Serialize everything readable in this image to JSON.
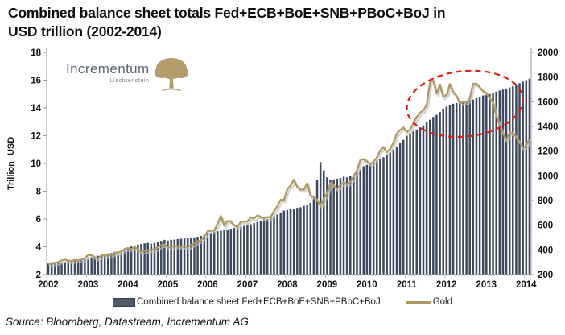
{
  "title_lines": [
    "Combined balance sheet totals Fed+ECB+BoE+SNB+PBoC+BoJ in",
    "USD trillion (2002-2014)"
  ],
  "logo": {
    "name": "Incrementum",
    "subtitle": "Liechtenstein"
  },
  "legend": {
    "bars": "Combined balance sheet Fed+ECB+BoE+SNB+PBoC+BoJ",
    "line": "Gold"
  },
  "source": "Source: Bloomberg, Datastream, Incrementum AG",
  "colors": {
    "bar": "#3c4960",
    "gold": "#b19a66",
    "gold_shadow": "#bdbdbd",
    "annotation": "#dd2015",
    "axis": "#9a9a9a",
    "tick_text": "#111111",
    "logo_text": "#5a6374",
    "logo_tree": "#b49b6b"
  },
  "chart_data": {
    "type": "bar+line",
    "title": "Combined balance sheet totals Fed+ECB+BoE+SNB+PBoC+BoJ in USD trillion (2002-2014)",
    "x_start_year": 2002,
    "points_per_year": 12,
    "x_tick_labels": [
      "2002",
      "2003",
      "2004",
      "2005",
      "2006",
      "2007",
      "2008",
      "2009",
      "2010",
      "2011",
      "2012",
      "2013",
      "2014"
    ],
    "left_axis": {
      "label": "Trillion USD",
      "range": [
        2,
        18
      ],
      "ticks": [
        2,
        4,
        6,
        8,
        10,
        12,
        14,
        16,
        18
      ]
    },
    "right_axis": {
      "label": "",
      "range": [
        200,
        2000
      ],
      "ticks": [
        200,
        400,
        600,
        800,
        1000,
        1200,
        1400,
        1600,
        1800,
        2000
      ]
    },
    "grid": false,
    "legend_position": "bottom",
    "series": [
      {
        "name": "Combined balance sheet Fed+ECB+BoE+SNB+PBoC+BoJ",
        "type": "bar",
        "axis": "left",
        "unit": "trillion USD",
        "values": [
          2.8,
          2.82,
          2.84,
          2.86,
          2.88,
          2.92,
          2.96,
          3.0,
          3.02,
          3.0,
          3.05,
          3.1,
          3.15,
          3.2,
          3.28,
          3.35,
          3.42,
          3.48,
          3.52,
          3.55,
          3.46,
          3.42,
          3.55,
          3.7,
          3.95,
          4.02,
          4.1,
          4.15,
          4.2,
          4.25,
          4.28,
          4.22,
          4.28,
          4.35,
          4.42,
          4.5,
          4.45,
          4.5,
          4.52,
          4.55,
          4.58,
          4.6,
          4.62,
          4.65,
          4.68,
          4.72,
          4.78,
          4.85,
          4.95,
          5.02,
          5.08,
          5.12,
          5.16,
          5.2,
          5.25,
          5.3,
          5.35,
          5.4,
          5.45,
          5.5,
          5.55,
          5.62,
          5.7,
          5.78,
          5.85,
          5.92,
          6.0,
          6.1,
          6.2,
          6.32,
          6.45,
          6.6,
          6.65,
          6.7,
          6.75,
          6.8,
          6.85,
          6.95,
          7.05,
          7.15,
          7.5,
          8.8,
          10.1,
          9.5,
          9.0,
          8.8,
          8.85,
          8.9,
          8.95,
          9.05,
          9.0,
          9.1,
          9.2,
          9.35,
          9.55,
          9.8,
          9.9,
          10.0,
          10.1,
          10.2,
          10.3,
          10.45,
          10.6,
          10.8,
          11.0,
          11.2,
          11.45,
          11.7,
          12.0,
          12.15,
          12.3,
          12.45,
          12.6,
          12.75,
          12.95,
          13.15,
          13.35,
          13.5,
          13.7,
          13.95,
          14.1,
          14.2,
          14.3,
          14.35,
          14.4,
          14.45,
          14.5,
          14.55,
          14.6,
          14.7,
          14.8,
          14.9,
          14.95,
          15.0,
          15.1,
          15.18,
          15.25,
          15.32,
          15.4,
          15.48,
          15.56,
          15.65,
          15.78,
          15.9,
          16.0,
          16.1
        ]
      },
      {
        "name": "Gold",
        "type": "line",
        "axis": "right",
        "unit": "USD/oz",
        "values": [
          281,
          295,
          294,
          302,
          314,
          321,
          313,
          310,
          319,
          317,
          319,
          333,
          357,
          359,
          340,
          328,
          355,
          356,
          351,
          360,
          379,
          378,
          386,
          407,
          414,
          405,
          424,
          403,
          383,
          392,
          398,
          400,
          405,
          420,
          439,
          442,
          424,
          423,
          434,
          429,
          422,
          431,
          424,
          437,
          456,
          470,
          477,
          510,
          550,
          555,
          557,
          611,
          675,
          596,
          634,
          632,
          599,
          586,
          627,
          629,
          631,
          665,
          655,
          679,
          667,
          655,
          665,
          665,
          713,
          754,
          806,
          803,
          890,
          922,
          968,
          910,
          889,
          889,
          940,
          839,
          829,
          807,
          757,
          816,
          858,
          943,
          924,
          890,
          928,
          946,
          934,
          949,
          996,
          1043,
          1127,
          1135,
          1118,
          1095,
          1113,
          1148,
          1205,
          1233,
          1193,
          1216,
          1271,
          1342,
          1370,
          1391,
          1356,
          1373,
          1424,
          1474,
          1511,
          1529,
          1573,
          1756,
          1772,
          1666,
          1739,
          1640,
          1654,
          1744,
          1676,
          1650,
          1589,
          1598,
          1593,
          1627,
          1745,
          1747,
          1718,
          1685,
          1672,
          1628,
          1593,
          1487,
          1414,
          1343,
          1286,
          1347,
          1348,
          1316,
          1276,
          1221,
          1244,
          1301
        ]
      }
    ],
    "annotation_ellipse": {
      "description": "red dashed ellipse circling the 2011-2013 gold price top",
      "center_month_index": 125.5,
      "center_value_right_axis": 1583,
      "rx_months": 17.5,
      "ry_value": 265,
      "rotation_deg": -6
    }
  }
}
